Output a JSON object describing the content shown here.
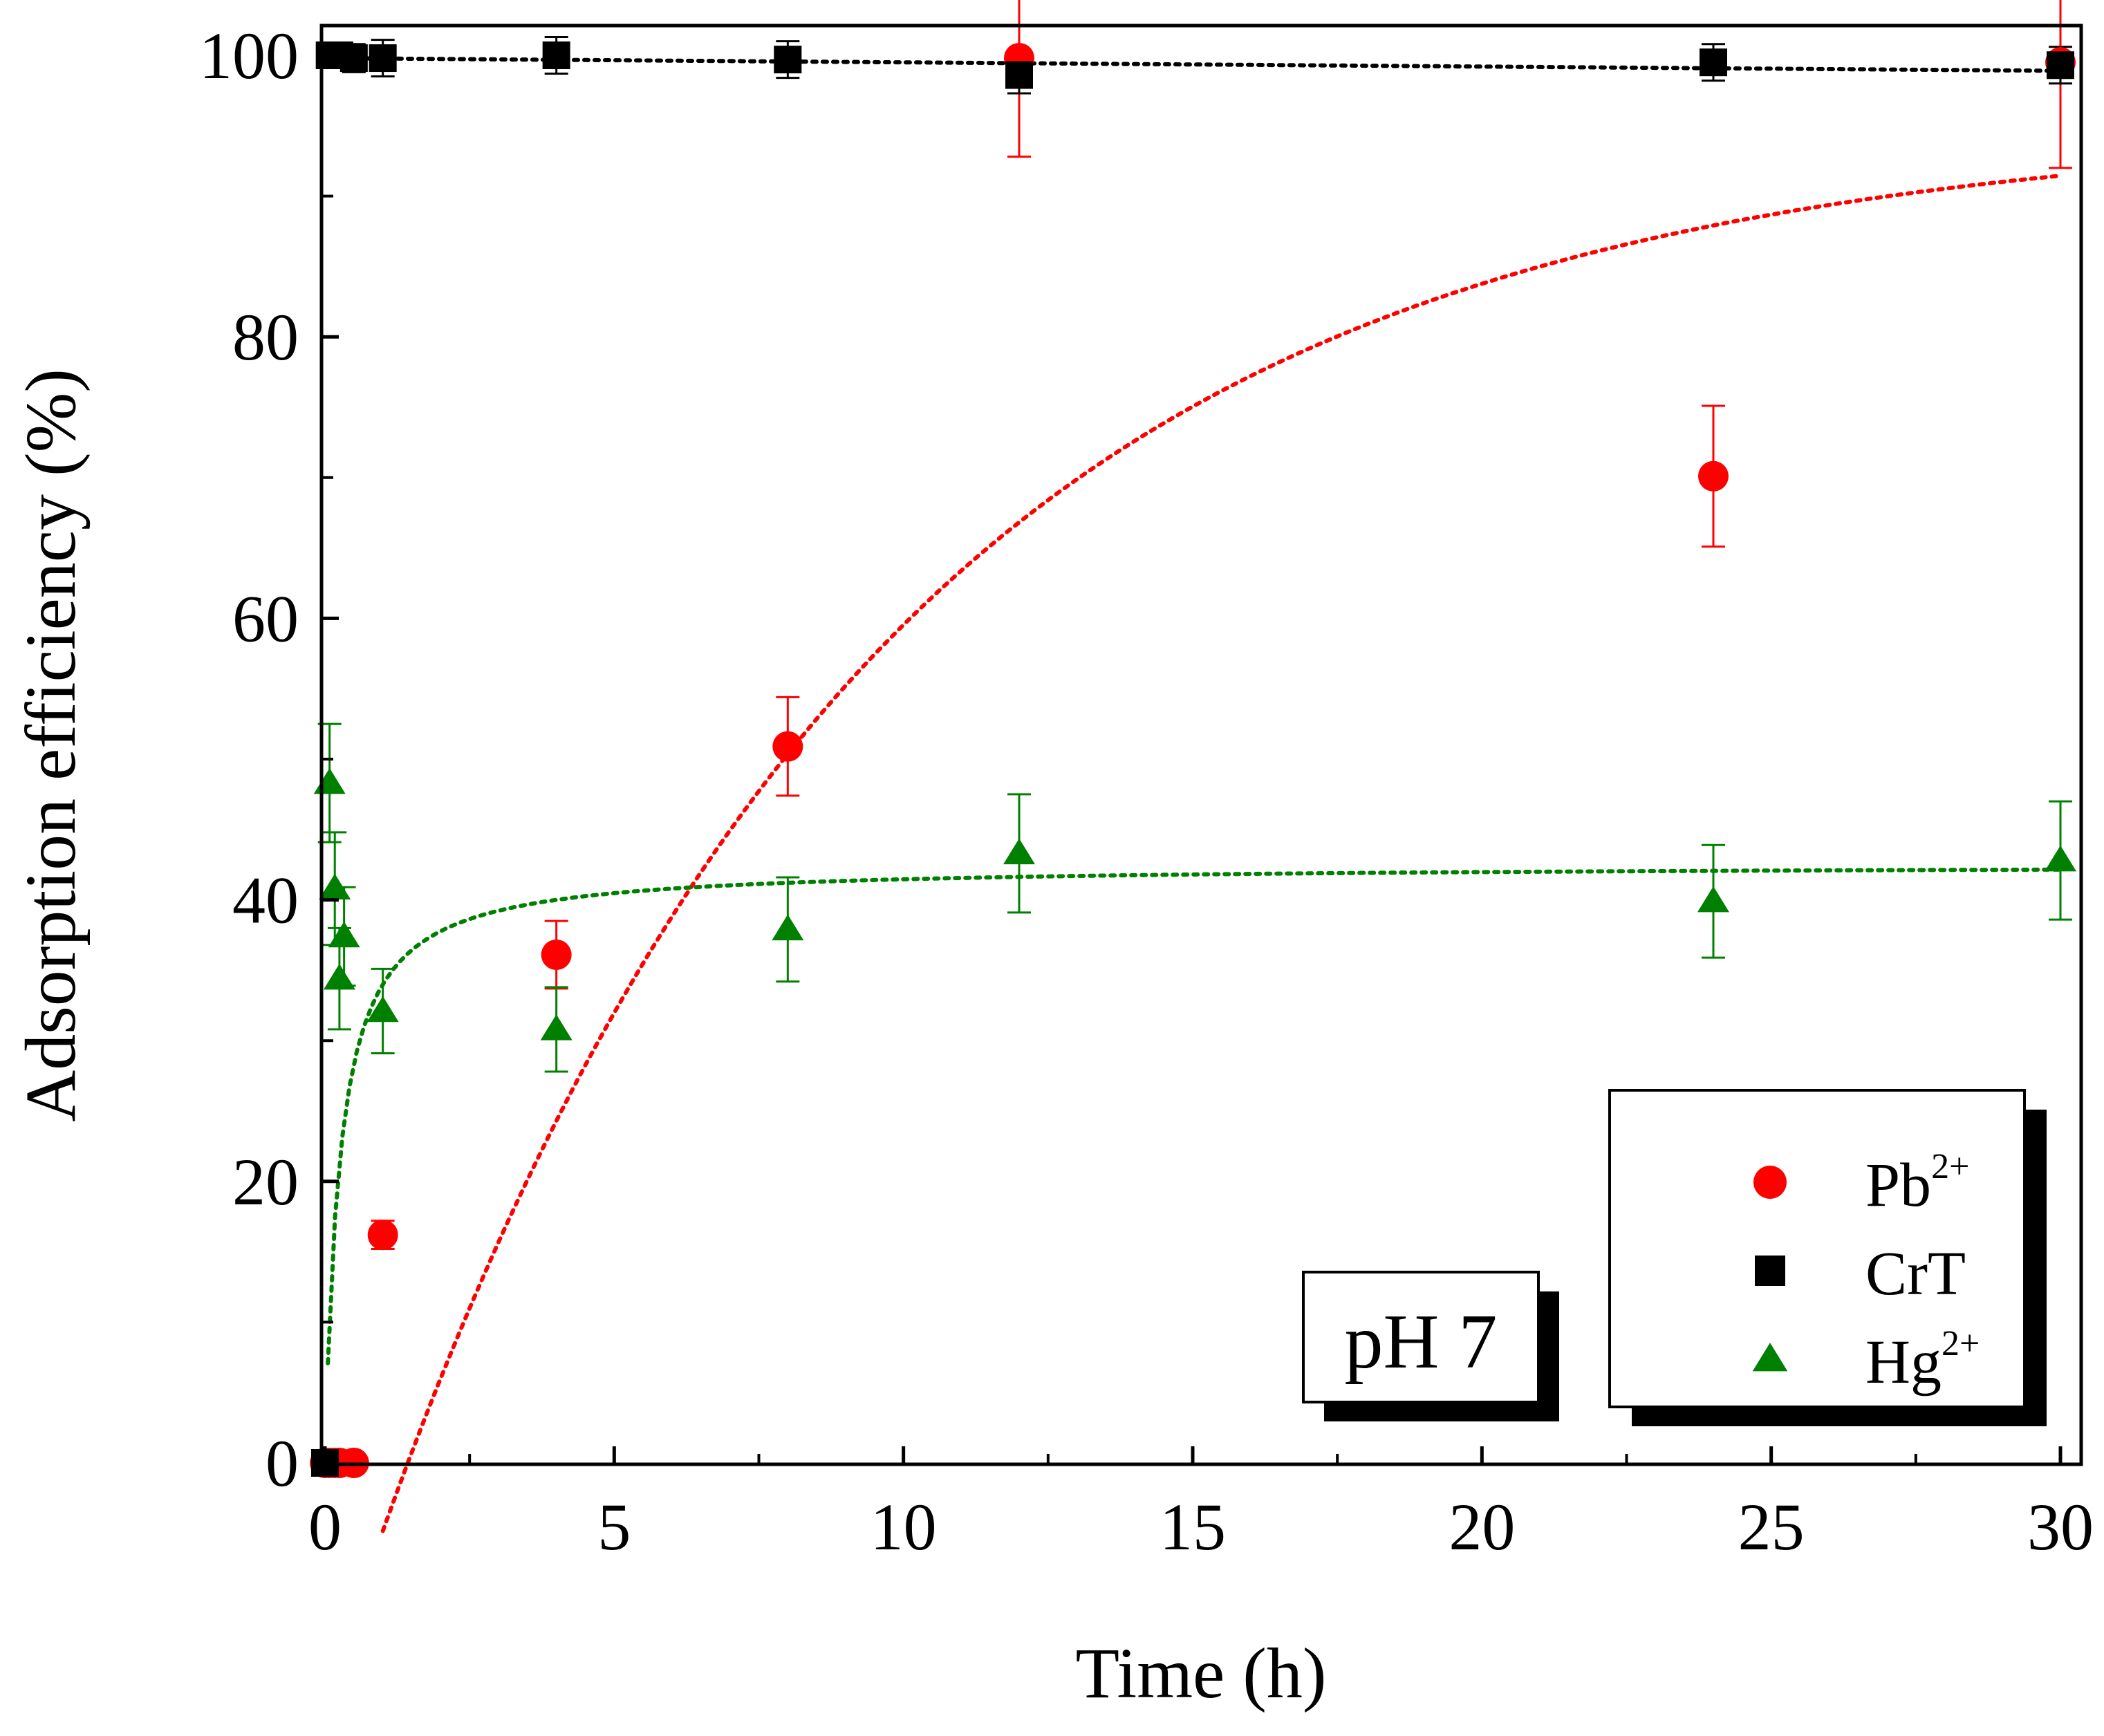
{
  "chart_data": {
    "type": "scatter",
    "xlabel": "Time (h)",
    "ylabel": "Adsorption efficiency (%)",
    "xlim": [
      0,
      30
    ],
    "ylim": [
      0,
      100
    ],
    "xticks": [
      0,
      5,
      10,
      15,
      20,
      25,
      30
    ],
    "xtick_labels": [
      "0",
      "5",
      "10",
      "15",
      "20",
      "25",
      "30"
    ],
    "yticks": [
      0,
      20,
      40,
      60,
      80,
      100
    ],
    "ytick_labels": [
      "0",
      "20",
      "40",
      "60",
      "80",
      "100"
    ],
    "grid": false,
    "annotation": "pH 7",
    "legend_position": "bottom-right",
    "series": [
      {
        "name": "Pb",
        "superscript": "2+",
        "marker": "circle",
        "color": "#ff0000",
        "x": [
          0,
          0.08,
          0.17,
          0.25,
          0.5,
          1,
          4,
          8,
          12,
          24,
          30
        ],
        "y": [
          0,
          0,
          0,
          0,
          0,
          16.2,
          36.1,
          50.9,
          99.8,
          70.1,
          99.5
        ],
        "err": [
          0,
          0,
          0,
          0,
          0,
          1.0,
          2.4,
          3.5,
          7.0,
          5.0,
          7.5
        ],
        "fit": {
          "model": "exponential",
          "x_start": 1,
          "x_end": 30,
          "y0": -17,
          "ymax": 95,
          "k": 0.115
        }
      },
      {
        "name": "CrT",
        "superscript": "",
        "marker": "square",
        "color": "#000000",
        "x": [
          0,
          0.08,
          0.17,
          0.25,
          0.5,
          1,
          4,
          8,
          12,
          24,
          30
        ],
        "y": [
          0,
          100,
          100,
          100,
          99.8,
          99.8,
          100,
          99.7,
          98.6,
          99.5,
          99.3
        ],
        "err": [
          0,
          0.8,
          0.8,
          0.8,
          1.0,
          1.3,
          1.3,
          1.3,
          1.3,
          1.3,
          1.3
        ],
        "fit": {
          "model": "linear",
          "x_start": 0,
          "x_end": 30,
          "y_start": 99.8,
          "y_end": 98.9
        }
      },
      {
        "name": "Hg",
        "superscript": "2+",
        "marker": "triangle",
        "color": "#008000",
        "x": [
          0.08,
          0.17,
          0.25,
          0.33,
          1,
          4,
          8,
          12,
          24,
          30
        ],
        "y": [
          48.3,
          40.8,
          34.4,
          37.4,
          32.1,
          30.8,
          37.9,
          43.3,
          39.9,
          42.8
        ],
        "err": [
          4.2,
          4.0,
          3.6,
          3.5,
          3.0,
          3.0,
          3.7,
          4.2,
          4.0,
          4.2
        ],
        "fit": {
          "model": "hyperbolic",
          "x_start": 0.05,
          "x_end": 30,
          "a": 42.5,
          "b": 0.25
        }
      }
    ]
  }
}
